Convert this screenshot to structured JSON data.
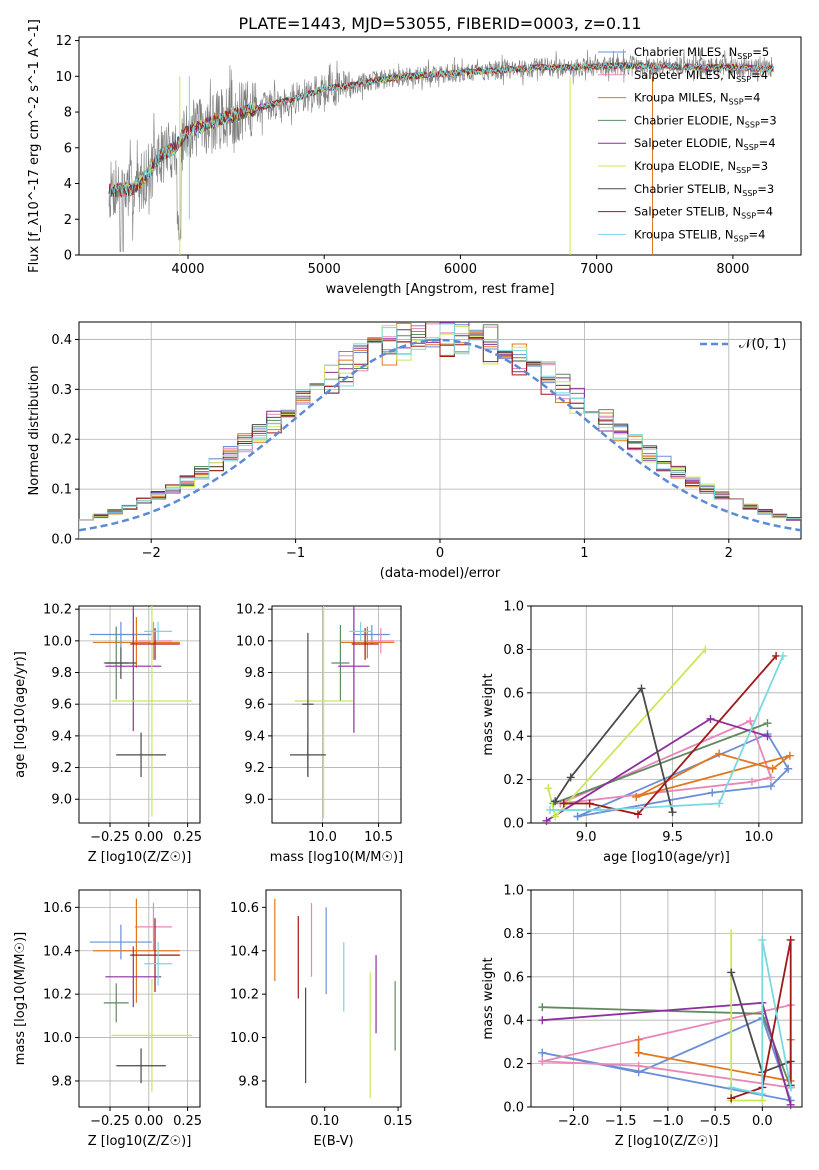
{
  "title": "PLATE=1443, MJD=53055, FIBERID=0003, z=0.11",
  "colors": {
    "chabrier_miles": "#6a8fd8",
    "salpeter_miles": "#e887b8",
    "kroupa_miles": "#e07820",
    "chabrier_elodie": "#5f8a5f",
    "salpeter_elodie": "#8e2f9e",
    "kroupa_elodie": "#c8e85a",
    "chabrier_stelib": "#4a4a4a",
    "salpeter_stelib": "#a01818",
    "kroupa_stelib": "#7ad8e0",
    "data": "#808080",
    "normal": "#5b8bd6"
  },
  "chart_data": [
    {
      "id": "spectrum",
      "type": "line",
      "xlabel": "wavelength [Angstrom, rest frame]",
      "ylabel": "Flux [f_λ10^-17 erg cm^-2 s^-1 A^-1]",
      "xlim": [
        3200,
        8500
      ],
      "ylim": [
        0,
        12.2
      ],
      "xticks": [
        4000,
        5000,
        6000,
        7000,
        8000
      ],
      "yticks": [
        0,
        2,
        4,
        6,
        8,
        10,
        12
      ],
      "legend_position": "top-right",
      "continuum": {
        "x": [
          3400,
          3600,
          3700,
          3800,
          3900,
          4000,
          4200,
          4400,
          4600,
          4800,
          5000,
          5200,
          5400,
          5600,
          5800,
          6000,
          6200,
          6400,
          6600,
          6800,
          7000,
          7200,
          7400,
          7600,
          7800,
          8000,
          8300
        ],
        "y": [
          3.6,
          3.7,
          4.5,
          5.6,
          6.0,
          6.9,
          7.5,
          8.0,
          8.4,
          8.8,
          9.3,
          9.5,
          9.8,
          10.0,
          10.1,
          10.2,
          10.3,
          10.4,
          10.5,
          10.5,
          10.55,
          10.6,
          10.6,
          10.55,
          10.5,
          10.5,
          10.4
        ]
      },
      "series": [
        {
          "name": "Chabrier MILES, N_SSP=5",
          "color": "#6a8fd8"
        },
        {
          "name": "Salpeter MILES, N_SSP=4",
          "color": "#e887b8"
        },
        {
          "name": "Kroupa MILES, N_SSP=4",
          "color": "#e07820"
        },
        {
          "name": "Chabrier ELODIE, N_SSP=3",
          "color": "#5f8a5f"
        },
        {
          "name": "Salpeter ELODIE, N_SSP=4",
          "color": "#8e2f9e"
        },
        {
          "name": "Kroupa ELODIE, N_SSP=3",
          "color": "#c8e85a"
        },
        {
          "name": "Chabrier STELIB, N_SSP=3",
          "color": "#4a4a4a"
        },
        {
          "name": "Salpeter STELIB, N_SSP=4",
          "color": "#a01818"
        },
        {
          "name": "Kroupa STELIB, N_SSP=4",
          "color": "#7ad8e0"
        }
      ]
    },
    {
      "id": "residuals",
      "type": "line",
      "xlabel": "(data-model)/error",
      "ylabel": "Normed distribution",
      "xlim": [
        -2.5,
        2.5
      ],
      "ylim": [
        0,
        0.435
      ],
      "xticks": [
        -2,
        -1,
        0,
        1,
        2
      ],
      "yticks": [
        0.0,
        0.1,
        0.2,
        0.3,
        0.4
      ],
      "grid": true,
      "legend_position": "top-right",
      "normal_label": "𝒩(0, 1)",
      "histogram_bins": 50
    },
    {
      "id": "age_vs_Z",
      "type": "scatter",
      "xlabel": "Z [log10(Z/Z☉)]",
      "ylabel": "age [log10(age/yr)]",
      "xlim": [
        -0.45,
        0.33
      ],
      "ylim": [
        8.85,
        10.22
      ],
      "xticks": [
        -0.25,
        0.0,
        0.25
      ],
      "yticks": [
        9.0,
        9.2,
        9.4,
        9.6,
        9.8,
        10.0,
        10.2
      ],
      "grid": true,
      "points": [
        {
          "series": "Chabrier MILES",
          "x": -0.18,
          "xerr": 0.2,
          "y": 10.04,
          "yerr": 0.08
        },
        {
          "series": "Salpeter MILES",
          "x": 0.03,
          "xerr": 0.12,
          "y": 10.0,
          "yerr": 0.12
        },
        {
          "series": "Kroupa MILES",
          "x": -0.08,
          "xerr": 0.28,
          "y": 9.99,
          "yerr": 0.16
        },
        {
          "series": "Chabrier ELODIE",
          "x": -0.21,
          "xerr": 0.08,
          "y": 9.86,
          "yerr": 0.23
        },
        {
          "series": "Salpeter ELODIE",
          "x": -0.1,
          "xerr": 0.18,
          "y": 9.84,
          "yerr": 0.41
        },
        {
          "series": "Kroupa ELODIE",
          "x": 0.02,
          "xerr": 0.26,
          "y": 9.62,
          "yerr": 0.73
        },
        {
          "series": "Chabrier STELIB",
          "x": -0.05,
          "xerr": 0.16,
          "y": 9.28,
          "yerr": 0.14
        },
        {
          "series": "Salpeter STELIB",
          "x": 0.04,
          "xerr": 0.16,
          "y": 9.98,
          "yerr": 0.1
        },
        {
          "series": "Kroupa STELIB",
          "x": 0.06,
          "xerr": 0.09,
          "y": 10.06,
          "yerr": 0.06
        },
        {
          "series": "Chabrier STELIB",
          "x": -0.18,
          "xerr": 0.1,
          "y": 9.86,
          "yerr": 0.1
        }
      ]
    },
    {
      "id": "age_vs_mass",
      "type": "scatter",
      "xlabel": "mass [log10(M/M☉)]",
      "ylabel": "",
      "xlim": [
        9.55,
        10.7
      ],
      "ylim": [
        8.85,
        10.22
      ],
      "xticks": [
        10.0,
        10.5
      ],
      "yticks": [
        9.0,
        9.2,
        9.4,
        9.6,
        9.8,
        10.0,
        10.2
      ],
      "grid": true,
      "points": [
        {
          "series": "Chabrier MILES",
          "x": 10.44,
          "xerr": 0.16,
          "y": 10.04,
          "yerr": 0.06
        },
        {
          "series": "Salpeter MILES",
          "x": 10.52,
          "xerr": 0.12,
          "y": 10.0,
          "yerr": 0.08
        },
        {
          "series": "Kroupa MILES",
          "x": 10.4,
          "xerr": 0.24,
          "y": 9.99,
          "yerr": 0.1
        },
        {
          "series": "Chabrier ELODIE",
          "x": 10.16,
          "xerr": 0.08,
          "y": 9.86,
          "yerr": 0.24
        },
        {
          "series": "Salpeter ELODIE",
          "x": 10.28,
          "xerr": 0.14,
          "y": 9.84,
          "yerr": 0.42
        },
        {
          "series": "Kroupa ELODIE",
          "x": 10.01,
          "xerr": 0.26,
          "y": 9.62,
          "yerr": 0.74
        },
        {
          "series": "Chabrier STELIB",
          "x": 9.87,
          "xerr": 0.16,
          "y": 9.28,
          "yerr": 0.14
        },
        {
          "series": "Salpeter STELIB",
          "x": 10.38,
          "xerr": 0.12,
          "y": 9.98,
          "yerr": 0.1
        },
        {
          "series": "Kroupa STELIB",
          "x": 10.34,
          "xerr": 0.1,
          "y": 10.06,
          "yerr": 0.06
        },
        {
          "series": "Chabrier STELIB",
          "x": 9.87,
          "xerr": 0.05,
          "y": 9.6,
          "yerr": 0.45
        }
      ]
    },
    {
      "id": "weight_vs_age",
      "type": "line",
      "xlabel": "age [log10(age/yr)]",
      "ylabel": "mass weight",
      "xlim": [
        8.68,
        10.25
      ],
      "ylim": [
        0,
        1.0
      ],
      "xticks": [
        9.0,
        9.5,
        10.0
      ],
      "yticks": [
        0.0,
        0.2,
        0.4,
        0.6,
        0.8,
        1.0
      ],
      "grid": true,
      "series": [
        {
          "name": "Chabrier MILES",
          "color": "#6a8fd8",
          "x": [
            8.95,
            9.73,
            10.07,
            10.17,
            10.05,
            8.95
          ],
          "y": [
            0.03,
            0.14,
            0.17,
            0.25,
            0.41,
            0.03
          ]
        },
        {
          "name": "Salpeter MILES",
          "color": "#e887b8",
          "x": [
            8.85,
            9.95,
            10.07,
            9.96,
            8.85
          ],
          "y": [
            0.09,
            0.47,
            0.21,
            0.19,
            0.09
          ]
        },
        {
          "name": "Kroupa MILES",
          "color": "#e07820",
          "x": [
            9.29,
            9.77,
            10.08,
            10.18,
            9.29
          ],
          "y": [
            0.12,
            0.32,
            0.25,
            0.31,
            0.12
          ]
        },
        {
          "name": "Chabrier ELODIE",
          "color": "#5f8a5f",
          "x": [
            8.81,
            10.05
          ],
          "y": [
            0.09,
            0.46
          ]
        },
        {
          "name": "Salpeter ELODIE",
          "color": "#8e2f9e",
          "x": [
            8.77,
            9.72,
            10.05
          ],
          "y": [
            0.01,
            0.48,
            0.4
          ]
        },
        {
          "name": "Kroupa ELODIE",
          "color": "#c8e85a",
          "x": [
            8.78,
            8.82,
            9.69
          ],
          "y": [
            0.16,
            0.03,
            0.8
          ]
        },
        {
          "name": "Chabrier STELIB",
          "color": "#4a4a4a",
          "x": [
            8.82,
            8.91,
            9.32,
            9.5
          ],
          "y": [
            0.1,
            0.21,
            0.62,
            0.05
          ]
        },
        {
          "name": "Salpeter STELIB",
          "color": "#a01818",
          "x": [
            8.87,
            9.02,
            9.3,
            10.1
          ],
          "y": [
            0.09,
            0.09,
            0.04,
            0.77
          ]
        },
        {
          "name": "Kroupa STELIB",
          "color": "#7ad8e0",
          "x": [
            8.79,
            9.08,
            9.77,
            10.14
          ],
          "y": [
            0.06,
            0.06,
            0.09,
            0.77
          ]
        }
      ]
    },
    {
      "id": "mass_vs_Z",
      "type": "scatter",
      "xlabel": "Z [log10(Z/Z☉)]",
      "ylabel": "mass [log10(M/M☉)]",
      "xlim": [
        -0.45,
        0.33
      ],
      "ylim": [
        9.68,
        10.68
      ],
      "xticks": [
        -0.25,
        0.0,
        0.25
      ],
      "yticks": [
        9.8,
        10.0,
        10.2,
        10.4,
        10.6
      ],
      "grid": true,
      "points": [
        {
          "series": "Chabrier MILES",
          "x": -0.18,
          "xerr": 0.2,
          "y": 10.44,
          "yerr": 0.08
        },
        {
          "series": "Salpeter MILES",
          "x": 0.03,
          "xerr": 0.12,
          "y": 10.51,
          "yerr": 0.11
        },
        {
          "series": "Kroupa MILES",
          "x": -0.08,
          "xerr": 0.28,
          "y": 10.4,
          "yerr": 0.24
        },
        {
          "series": "Chabrier ELODIE",
          "x": -0.21,
          "xerr": 0.08,
          "y": 10.16,
          "yerr": 0.09
        },
        {
          "series": "Salpeter ELODIE",
          "x": -0.1,
          "xerr": 0.18,
          "y": 10.28,
          "yerr": 0.14
        },
        {
          "series": "Kroupa ELODIE",
          "x": 0.02,
          "xerr": 0.26,
          "y": 10.01,
          "yerr": 0.26
        },
        {
          "series": "Chabrier STELIB",
          "x": -0.05,
          "xerr": 0.16,
          "y": 9.87,
          "yerr": 0.08
        },
        {
          "series": "Salpeter STELIB",
          "x": 0.04,
          "xerr": 0.16,
          "y": 10.38,
          "yerr": 0.17
        },
        {
          "series": "Kroupa STELIB",
          "x": 0.06,
          "xerr": 0.09,
          "y": 10.34,
          "yerr": 0.1
        }
      ]
    },
    {
      "id": "mass_vs_ebv",
      "type": "scatter",
      "xlabel": "E(B-V)",
      "ylabel": "",
      "xlim": [
        0.06,
        0.152
      ],
      "ylim": [
        9.68,
        10.68
      ],
      "xticks": [
        0.1,
        0.15
      ],
      "yticks": [
        9.8,
        10.0,
        10.2,
        10.4,
        10.6
      ],
      "grid": false,
      "points": [
        {
          "series": "Kroupa MILES",
          "x": 0.066,
          "y": 10.45,
          "yerr": 0.19
        },
        {
          "series": "Salpeter STELIB",
          "x": 0.082,
          "y": 10.37,
          "yerr": 0.19
        },
        {
          "series": "Chabrier STELIB",
          "x": 0.087,
          "y": 10.01,
          "yerr": 0.22
        },
        {
          "series": "Salpeter MILES",
          "x": 0.091,
          "y": 10.45,
          "yerr": 0.17
        },
        {
          "series": "Chabrier MILES",
          "x": 0.101,
          "y": 10.4,
          "yerr": 0.2
        },
        {
          "series": "Kroupa STELIB",
          "x": 0.113,
          "y": 10.28,
          "yerr": 0.16
        },
        {
          "series": "Salpeter ELODIE",
          "x": 0.135,
          "y": 10.2,
          "yerr": 0.18
        },
        {
          "series": "Kroupa ELODIE",
          "x": 0.131,
          "y": 10.01,
          "yerr": 0.29
        },
        {
          "series": "Chabrier ELODIE",
          "x": 0.148,
          "y": 10.1,
          "yerr": 0.16
        }
      ]
    },
    {
      "id": "weight_vs_Z",
      "type": "line",
      "xlabel": "Z [log10(Z/Z☉)]",
      "ylabel": "mass weight",
      "xlim": [
        -2.45,
        0.42
      ],
      "ylim": [
        0,
        1.0
      ],
      "xticks": [
        -2.0,
        -1.5,
        -1.0,
        -0.5,
        0.0
      ],
      "yticks": [
        0.0,
        0.2,
        0.4,
        0.6,
        0.8,
        1.0
      ],
      "grid": true,
      "series": [
        {
          "name": "Chabrier MILES",
          "color": "#6a8fd8",
          "x": [
            -2.33,
            -1.31,
            0.0,
            0.3,
            -2.33
          ],
          "y": [
            0.25,
            0.16,
            0.41,
            0.03,
            0.25
          ]
        },
        {
          "name": "Salpeter MILES",
          "color": "#e887b8",
          "x": [
            -2.33,
            -1.31,
            0.3,
            0.3,
            -2.33
          ],
          "y": [
            0.21,
            0.19,
            0.09,
            0.47,
            0.21
          ]
        },
        {
          "name": "Kroupa MILES",
          "color": "#e07820",
          "x": [
            -1.31,
            -1.31,
            0.3,
            0.3
          ],
          "y": [
            0.31,
            0.25,
            0.12,
            0.31
          ]
        },
        {
          "name": "Chabrier ELODIE",
          "color": "#5f8a5f",
          "x": [
            -2.33,
            0.0,
            0.3
          ],
          "y": [
            0.46,
            0.43,
            0.09
          ]
        },
        {
          "name": "Salpeter ELODIE",
          "color": "#8e2f9e",
          "x": [
            -2.33,
            0.0,
            0.3
          ],
          "y": [
            0.4,
            0.48,
            0.01
          ]
        },
        {
          "name": "Kroupa ELODIE",
          "color": "#c8e85a",
          "x": [
            -0.33,
            -0.33,
            0.0,
            0.0
          ],
          "y": [
            0.8,
            0.03,
            0.03,
            0.16
          ]
        },
        {
          "name": "Chabrier STELIB",
          "color": "#4a4a4a",
          "x": [
            -0.33,
            0.0,
            0.3,
            0.3
          ],
          "y": [
            0.62,
            0.16,
            0.21,
            0.1
          ]
        },
        {
          "name": "Salpeter STELIB",
          "color": "#a01818",
          "x": [
            -0.33,
            0.0,
            0.3,
            0.3
          ],
          "y": [
            0.04,
            0.09,
            0.77,
            0.09
          ]
        },
        {
          "name": "Kroupa STELIB",
          "color": "#7ad8e0",
          "x": [
            -0.33,
            0.0,
            0.0,
            0.3
          ],
          "y": [
            0.09,
            0.06,
            0.77,
            0.09
          ]
        }
      ]
    }
  ]
}
